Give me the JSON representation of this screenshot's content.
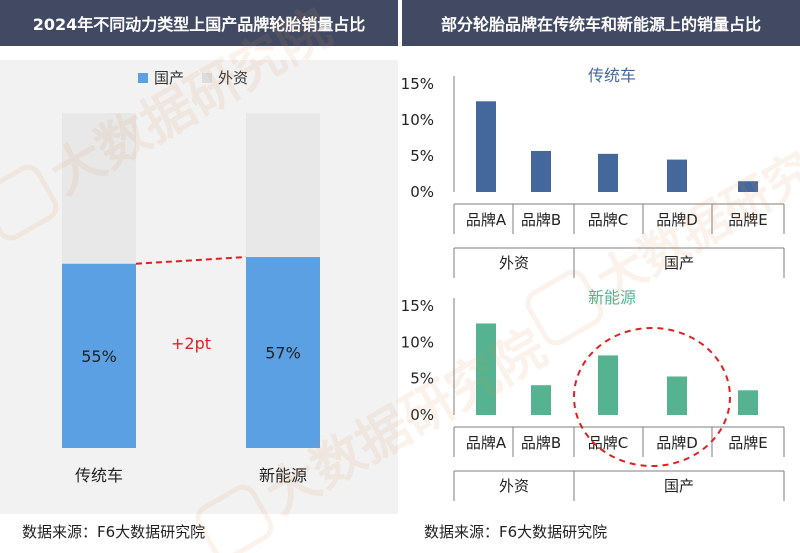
{
  "left": {
    "header": "2024年不同动力类型上国产品牌轮胎销量占比",
    "source": "数据来源：F6大数据研究院"
  },
  "right": {
    "header": "部分轮胎品牌在传统车和新能源上的销量占比",
    "source": "数据来源：F6大数据研究院"
  },
  "watermark": "大数据研究院",
  "colors": {
    "header_bg": "#414a62",
    "domestic": "#5ba0e3",
    "foreign": "#e8e8e8",
    "traditional": "#44679c",
    "nev": "#55b391",
    "accent_red": "#e02020"
  },
  "chart_data": [
    {
      "type": "bar",
      "stacked": true,
      "categories": [
        "传统车",
        "新能源"
      ],
      "series": [
        {
          "name": "国产",
          "values": [
            55,
            57
          ],
          "labels": [
            "55%",
            "57%"
          ]
        },
        {
          "name": "外资",
          "values": [
            45,
            43
          ]
        }
      ],
      "ylim": [
        0,
        100
      ],
      "legend": "top",
      "annotation": "+2pt"
    },
    {
      "type": "bar",
      "title": "传统车",
      "categories": [
        "品牌A",
        "品牌B",
        "品牌C",
        "品牌D",
        "品牌E"
      ],
      "groups": [
        {
          "label": "外资",
          "categories": [
            "品牌A",
            "品牌B"
          ]
        },
        {
          "label": "国产",
          "categories": [
            "品牌C",
            "品牌D",
            "品牌E"
          ]
        }
      ],
      "values": [
        12.6,
        5.7,
        5.3,
        4.5,
        1.5
      ],
      "yticks": [
        "15%",
        "10%",
        "5%",
        "0%"
      ],
      "ylim": [
        0,
        15
      ]
    },
    {
      "type": "bar",
      "title": "新能源",
      "categories": [
        "品牌A",
        "品牌B",
        "品牌C",
        "品牌D",
        "品牌E"
      ],
      "groups": [
        {
          "label": "外资",
          "categories": [
            "品牌A",
            "品牌B"
          ]
        },
        {
          "label": "国产",
          "categories": [
            "品牌C",
            "品牌D",
            "品牌E"
          ]
        }
      ],
      "values": [
        12.6,
        4.1,
        8.2,
        5.3,
        3.4
      ],
      "yticks": [
        "15%",
        "10%",
        "5%",
        "0%"
      ],
      "ylim": [
        0,
        15
      ]
    }
  ]
}
